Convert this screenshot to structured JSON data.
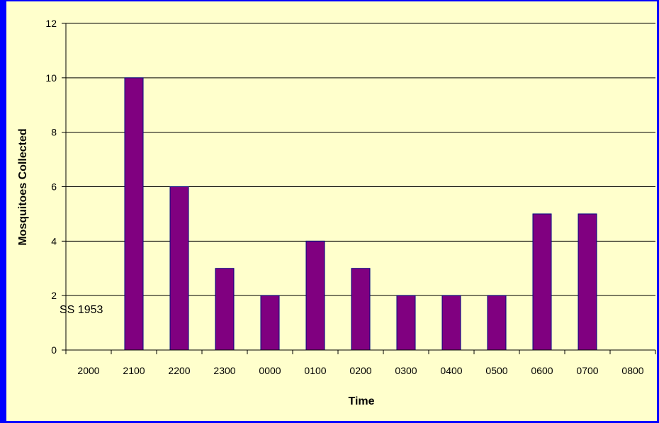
{
  "chart_data": {
    "type": "bar",
    "categories": [
      "2000",
      "2100",
      "2200",
      "2300",
      "0000",
      "0100",
      "0200",
      "0300",
      "0400",
      "0500",
      "0600",
      "0700",
      "0800"
    ],
    "values": [
      0,
      10,
      6,
      3,
      2,
      4,
      3,
      2,
      2,
      2,
      5,
      5,
      0
    ],
    "xlabel": "Time",
    "ylabel": "Mosquitoes Collected",
    "ylim": [
      0,
      12
    ],
    "yticks": [
      "0",
      "2",
      "4",
      "6",
      "8",
      "10",
      "12"
    ],
    "grid": true,
    "annotation": "SS 1953",
    "colors": {
      "bar": "#800080",
      "bar_edge": "#000080",
      "background": "#ffffcc",
      "border": "#0000ff",
      "grid": "#000000"
    }
  }
}
